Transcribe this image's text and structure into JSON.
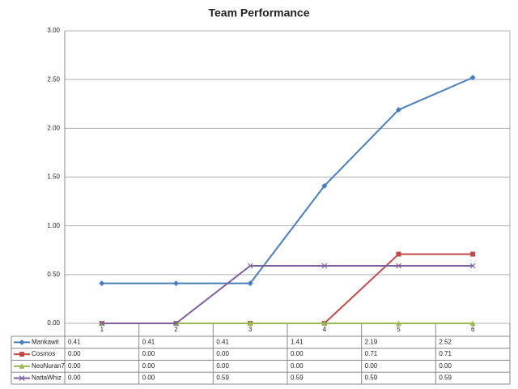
{
  "chart_data": {
    "type": "line",
    "title": "Team Performance",
    "categories": [
      "1",
      "2",
      "3",
      "4",
      "5",
      "6"
    ],
    "series": [
      {
        "name": "Mankawit",
        "color": "#4a7ebb",
        "marker": "diamond",
        "values": [
          0.41,
          0.41,
          0.41,
          1.41,
          2.19,
          2.52
        ],
        "value_labels": [
          "0.41",
          "0.41",
          "0.41",
          "1.41",
          "2.19",
          "2.52"
        ]
      },
      {
        "name": "Cosmos",
        "color": "#be4b48",
        "marker": "square",
        "values": [
          0,
          0,
          0,
          0,
          0.71,
          0.71
        ],
        "value_labels": [
          "0.00",
          "0.00",
          "0.00",
          "0.00",
          "0.71",
          "0.71"
        ]
      },
      {
        "name": "NeoNuran7",
        "color": "#98b954",
        "marker": "triangle",
        "values": [
          0,
          0,
          0,
          0,
          0,
          0
        ],
        "value_labels": [
          "0.00",
          "0.00",
          "0.00",
          "0.00",
          "0.00",
          "0.00"
        ]
      },
      {
        "name": "NattaWhiz",
        "color": "#7d5fa0",
        "marker": "x",
        "values": [
          0,
          0,
          0.59,
          0.59,
          0.59,
          0.59
        ],
        "value_labels": [
          "0.00",
          "0.00",
          "0.59",
          "0.59",
          "0.59",
          "0.59"
        ]
      }
    ],
    "ylim": [
      0,
      3
    ],
    "yticks": [
      {
        "value": 0,
        "label": "0.00"
      },
      {
        "value": 0.5,
        "label": "0.50"
      },
      {
        "value": 1,
        "label": "1.00"
      },
      {
        "value": 1.5,
        "label": "1.50"
      },
      {
        "value": 2,
        "label": "2.00"
      },
      {
        "value": 2.5,
        "label": "2.50"
      },
      {
        "value": 3,
        "label": "3.00"
      }
    ],
    "grid": true
  }
}
